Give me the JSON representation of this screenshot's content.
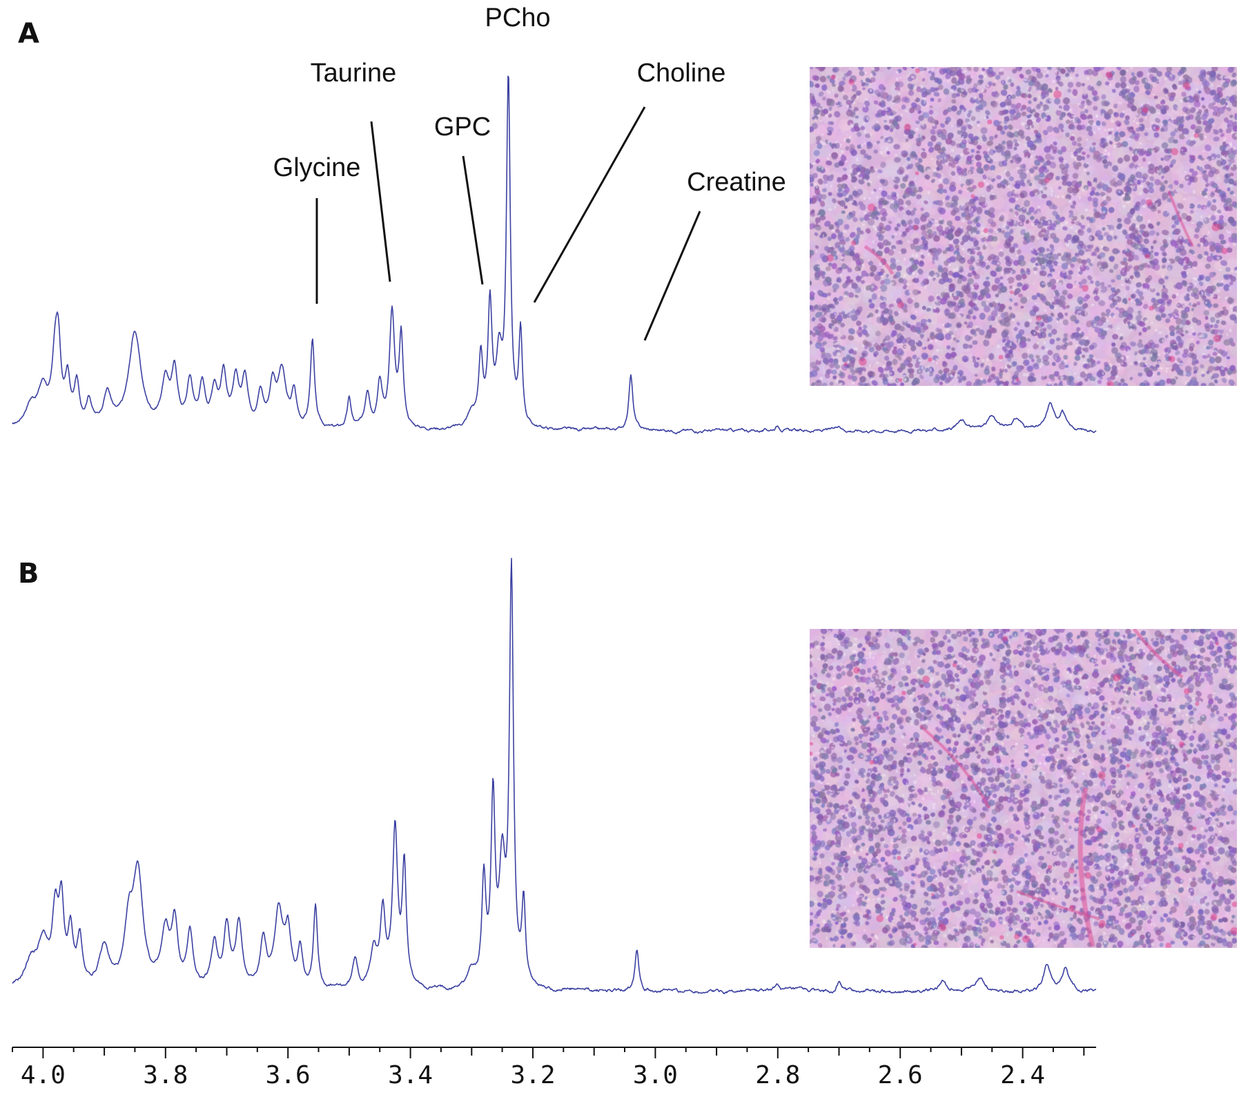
{
  "panels": [
    {
      "letter": "A"
    },
    {
      "letter": "B"
    }
  ],
  "chart_data": [
    {
      "type": "line",
      "panel": "A",
      "series_color": "#3b40a0",
      "xlim": [
        4.05,
        2.28
      ],
      "x_reversed": true,
      "ylim": [
        0,
        100
      ],
      "annotations": [
        {
          "text": "Glycine",
          "x": 3.56
        },
        {
          "text": "Taurine",
          "x": 3.43
        },
        {
          "text": "GPC",
          "x": 3.28
        },
        {
          "text": "PCho",
          "x": 3.24
        },
        {
          "text": "Choline",
          "x": 3.21
        },
        {
          "text": "Creatine",
          "x": 3.04
        }
      ],
      "peaks": [
        {
          "x": 4.02,
          "y": 6,
          "w": 0.012
        },
        {
          "x": 4.0,
          "y": 10,
          "w": 0.01
        },
        {
          "x": 3.98,
          "y": 17,
          "w": 0.006
        },
        {
          "x": 3.975,
          "y": 17,
          "w": 0.005
        },
        {
          "x": 3.96,
          "y": 12,
          "w": 0.005
        },
        {
          "x": 3.945,
          "y": 11,
          "w": 0.005
        },
        {
          "x": 3.925,
          "y": 7,
          "w": 0.006
        },
        {
          "x": 3.895,
          "y": 9,
          "w": 0.008
        },
        {
          "x": 3.85,
          "y": 26,
          "w": 0.012
        },
        {
          "x": 3.8,
          "y": 12,
          "w": 0.008
        },
        {
          "x": 3.785,
          "y": 14,
          "w": 0.006
        },
        {
          "x": 3.76,
          "y": 12,
          "w": 0.006
        },
        {
          "x": 3.74,
          "y": 11,
          "w": 0.006
        },
        {
          "x": 3.72,
          "y": 10,
          "w": 0.006
        },
        {
          "x": 3.705,
          "y": 14,
          "w": 0.006
        },
        {
          "x": 3.685,
          "y": 12,
          "w": 0.006
        },
        {
          "x": 3.67,
          "y": 13,
          "w": 0.006
        },
        {
          "x": 3.645,
          "y": 9,
          "w": 0.006
        },
        {
          "x": 3.625,
          "y": 11,
          "w": 0.006
        },
        {
          "x": 3.61,
          "y": 15,
          "w": 0.008
        },
        {
          "x": 3.59,
          "y": 9,
          "w": 0.005
        },
        {
          "x": 3.56,
          "y": 24,
          "w": 0.004
        },
        {
          "x": 3.5,
          "y": 8,
          "w": 0.004
        },
        {
          "x": 3.47,
          "y": 10,
          "w": 0.005
        },
        {
          "x": 3.45,
          "y": 12,
          "w": 0.005
        },
        {
          "x": 3.43,
          "y": 31,
          "w": 0.005
        },
        {
          "x": 3.415,
          "y": 24,
          "w": 0.004
        },
        {
          "x": 3.3,
          "y": 4,
          "w": 0.008
        },
        {
          "x": 3.285,
          "y": 19,
          "w": 0.004
        },
        {
          "x": 3.27,
          "y": 32,
          "w": 0.004
        },
        {
          "x": 3.255,
          "y": 18,
          "w": 0.006
        },
        {
          "x": 3.24,
          "y": 94,
          "w": 0.0038
        },
        {
          "x": 3.22,
          "y": 25,
          "w": 0.0035
        },
        {
          "x": 3.04,
          "y": 15,
          "w": 0.004
        },
        {
          "x": 2.8,
          "y": 1.5,
          "w": 0.005
        },
        {
          "x": 2.7,
          "y": 1.5,
          "w": 0.005
        },
        {
          "x": 2.5,
          "y": 2.5,
          "w": 0.01
        },
        {
          "x": 2.45,
          "y": 3.5,
          "w": 0.01
        },
        {
          "x": 2.41,
          "y": 3,
          "w": 0.01
        },
        {
          "x": 2.355,
          "y": 7,
          "w": 0.007
        },
        {
          "x": 2.335,
          "y": 5,
          "w": 0.006
        }
      ]
    },
    {
      "type": "line",
      "panel": "B",
      "series_color": "#3b40a0",
      "xlim": [
        4.05,
        2.28
      ],
      "x_reversed": true,
      "ylim": [
        0,
        100
      ],
      "xticks": [
        4.0,
        3.8,
        3.6,
        3.4,
        3.2,
        3.0,
        2.8,
        2.6,
        2.4
      ],
      "xtick_labels": [
        "4.0",
        "3.8",
        "3.6",
        "3.4",
        "3.2",
        "3.0",
        "2.8",
        "2.6",
        "2.4"
      ],
      "peaks": [
        {
          "x": 4.02,
          "y": 6,
          "w": 0.012
        },
        {
          "x": 4.0,
          "y": 10,
          "w": 0.01
        },
        {
          "x": 3.98,
          "y": 16,
          "w": 0.006
        },
        {
          "x": 3.97,
          "y": 17,
          "w": 0.005
        },
        {
          "x": 3.955,
          "y": 12,
          "w": 0.005
        },
        {
          "x": 3.94,
          "y": 11,
          "w": 0.005
        },
        {
          "x": 3.9,
          "y": 9,
          "w": 0.01
        },
        {
          "x": 3.86,
          "y": 12,
          "w": 0.008
        },
        {
          "x": 3.845,
          "y": 26,
          "w": 0.01
        },
        {
          "x": 3.8,
          "y": 12,
          "w": 0.008
        },
        {
          "x": 3.785,
          "y": 14,
          "w": 0.006
        },
        {
          "x": 3.76,
          "y": 12,
          "w": 0.006
        },
        {
          "x": 3.72,
          "y": 10,
          "w": 0.006
        },
        {
          "x": 3.7,
          "y": 14,
          "w": 0.006
        },
        {
          "x": 3.68,
          "y": 15,
          "w": 0.006
        },
        {
          "x": 3.64,
          "y": 11,
          "w": 0.006
        },
        {
          "x": 3.615,
          "y": 17,
          "w": 0.008
        },
        {
          "x": 3.6,
          "y": 12,
          "w": 0.006
        },
        {
          "x": 3.58,
          "y": 9,
          "w": 0.005
        },
        {
          "x": 3.555,
          "y": 19,
          "w": 0.004
        },
        {
          "x": 3.49,
          "y": 7,
          "w": 0.005
        },
        {
          "x": 3.46,
          "y": 9,
          "w": 0.006
        },
        {
          "x": 3.445,
          "y": 17,
          "w": 0.005
        },
        {
          "x": 3.425,
          "y": 36,
          "w": 0.005
        },
        {
          "x": 3.41,
          "y": 27,
          "w": 0.004
        },
        {
          "x": 3.3,
          "y": 4,
          "w": 0.008
        },
        {
          "x": 3.28,
          "y": 24,
          "w": 0.004
        },
        {
          "x": 3.265,
          "y": 42,
          "w": 0.004
        },
        {
          "x": 3.25,
          "y": 26,
          "w": 0.006
        },
        {
          "x": 3.235,
          "y": 94,
          "w": 0.004
        },
        {
          "x": 3.215,
          "y": 18,
          "w": 0.0035
        },
        {
          "x": 3.03,
          "y": 10,
          "w": 0.004
        },
        {
          "x": 2.8,
          "y": 1.5,
          "w": 0.005
        },
        {
          "x": 2.7,
          "y": 2,
          "w": 0.005
        },
        {
          "x": 2.53,
          "y": 2,
          "w": 0.006
        },
        {
          "x": 2.47,
          "y": 3,
          "w": 0.01
        },
        {
          "x": 2.36,
          "y": 6,
          "w": 0.007
        },
        {
          "x": 2.33,
          "y": 5,
          "w": 0.006
        }
      ]
    }
  ]
}
